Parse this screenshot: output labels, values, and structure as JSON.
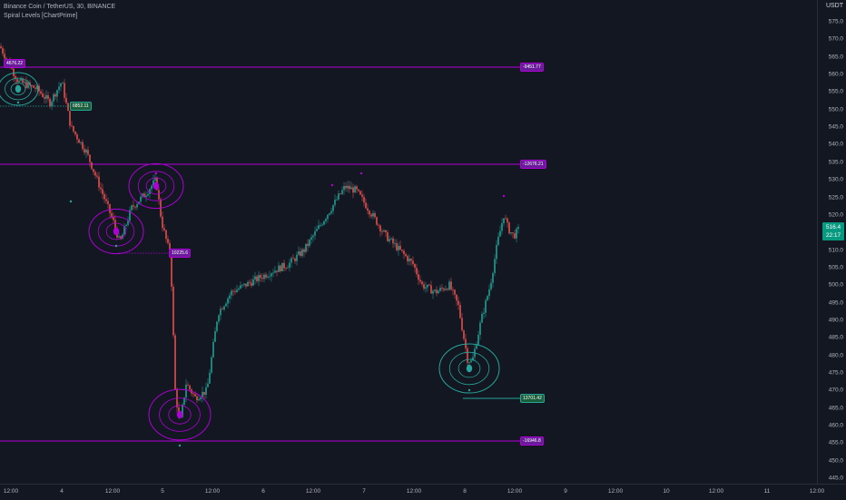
{
  "header": {
    "symbol_line": "Binance Coin / TetherUS, 30, BINANCE",
    "indicator": "Spiral Levels [ChartPrime]"
  },
  "price_axis": {
    "currency": "USDT",
    "ticks": [
      "575.0",
      "570.0",
      "565.0",
      "560.0",
      "555.0",
      "550.0",
      "545.0",
      "540.0",
      "535.0",
      "530.0",
      "525.0",
      "520.0",
      "515.0",
      "510.0",
      "505.0",
      "500.0",
      "495.0",
      "490.0",
      "485.0",
      "480.0",
      "475.0",
      "470.0",
      "465.0",
      "460.0",
      "455.0",
      "450.0",
      "445.0"
    ]
  },
  "time_axis": {
    "ticks": [
      "12:00",
      "4",
      "12:00",
      "5",
      "12:00",
      "6",
      "12:00",
      "7",
      "12:00",
      "8",
      "12:00",
      "9",
      "12:00",
      "10",
      "12:00",
      "11",
      "12:00"
    ]
  },
  "last_price": {
    "price": "516.4",
    "countdown": "22:17"
  },
  "levels": [
    {
      "label": "4676.22",
      "color": "purple"
    },
    {
      "label": "-9451.77",
      "color": "purple"
    },
    {
      "label": "6852.11",
      "color": "green"
    },
    {
      "label": "-12676.21",
      "color": "purple"
    },
    {
      "label": "10225.6",
      "color": "purple"
    },
    {
      "label": "13701.42",
      "color": "green"
    },
    {
      "label": "-16946.8",
      "color": "purple"
    }
  ],
  "colors": {
    "background": "#131722",
    "bull": "#26a69a",
    "bear": "#ef5350",
    "level_purple": "#b000d8",
    "level_green": "#26a69a"
  }
}
